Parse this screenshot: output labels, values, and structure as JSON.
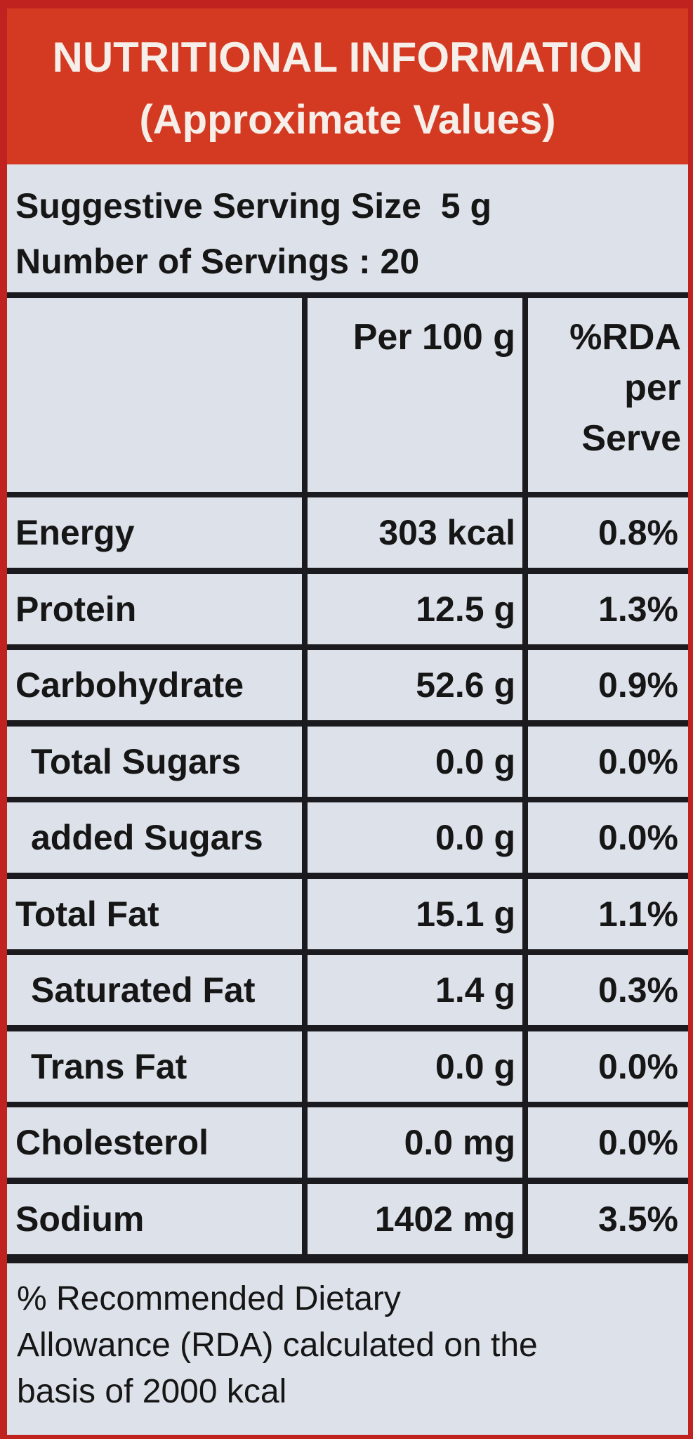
{
  "header": {
    "title": "NUTRITIONAL INFORMATION",
    "subtitle": "(Approximate Values)"
  },
  "serving": {
    "size_line": "Suggestive Serving Size  5 g",
    "count_line": "Number of Servings : 20"
  },
  "table": {
    "col_per100": "Per 100 g",
    "col_rda": [
      "%RDA",
      "per",
      "Serve"
    ],
    "rows": [
      {
        "name": "Energy",
        "per100": "303 kcal",
        "rda": "0.8%",
        "indent": false
      },
      {
        "name": "Protein",
        "per100": "12.5 g",
        "rda": "1.3%",
        "indent": false
      },
      {
        "name": "Carbohydrate",
        "per100": "52.6 g",
        "rda": "0.9%",
        "indent": false
      },
      {
        "name": "Total Sugars",
        "per100": "0.0 g",
        "rda": "0.0%",
        "indent": true
      },
      {
        "name": "added Sugars",
        "per100": "0.0 g",
        "rda": "0.0%",
        "indent": true
      },
      {
        "name": "Total Fat",
        "per100": "15.1 g",
        "rda": "1.1%",
        "indent": false
      },
      {
        "name": "Saturated Fat",
        "per100": "1.4 g",
        "rda": "0.3%",
        "indent": true
      },
      {
        "name": "Trans Fat",
        "per100": "0.0 g",
        "rda": "0.0%",
        "indent": true
      },
      {
        "name": "Cholesterol",
        "per100": "0.0 mg",
        "rda": "0.0%",
        "indent": false
      },
      {
        "name": "Sodium",
        "per100": "1402 mg",
        "rda": "3.5%",
        "indent": false
      }
    ]
  },
  "footnote": {
    "lines": [
      "% Recommended Dietary",
      "Allowance (RDA) calculated on the",
      "basis of 2000 kcal"
    ]
  },
  "colors": {
    "header_red": "#d43a22",
    "panel": "#dde2ea",
    "border": "#1b1b1f"
  }
}
